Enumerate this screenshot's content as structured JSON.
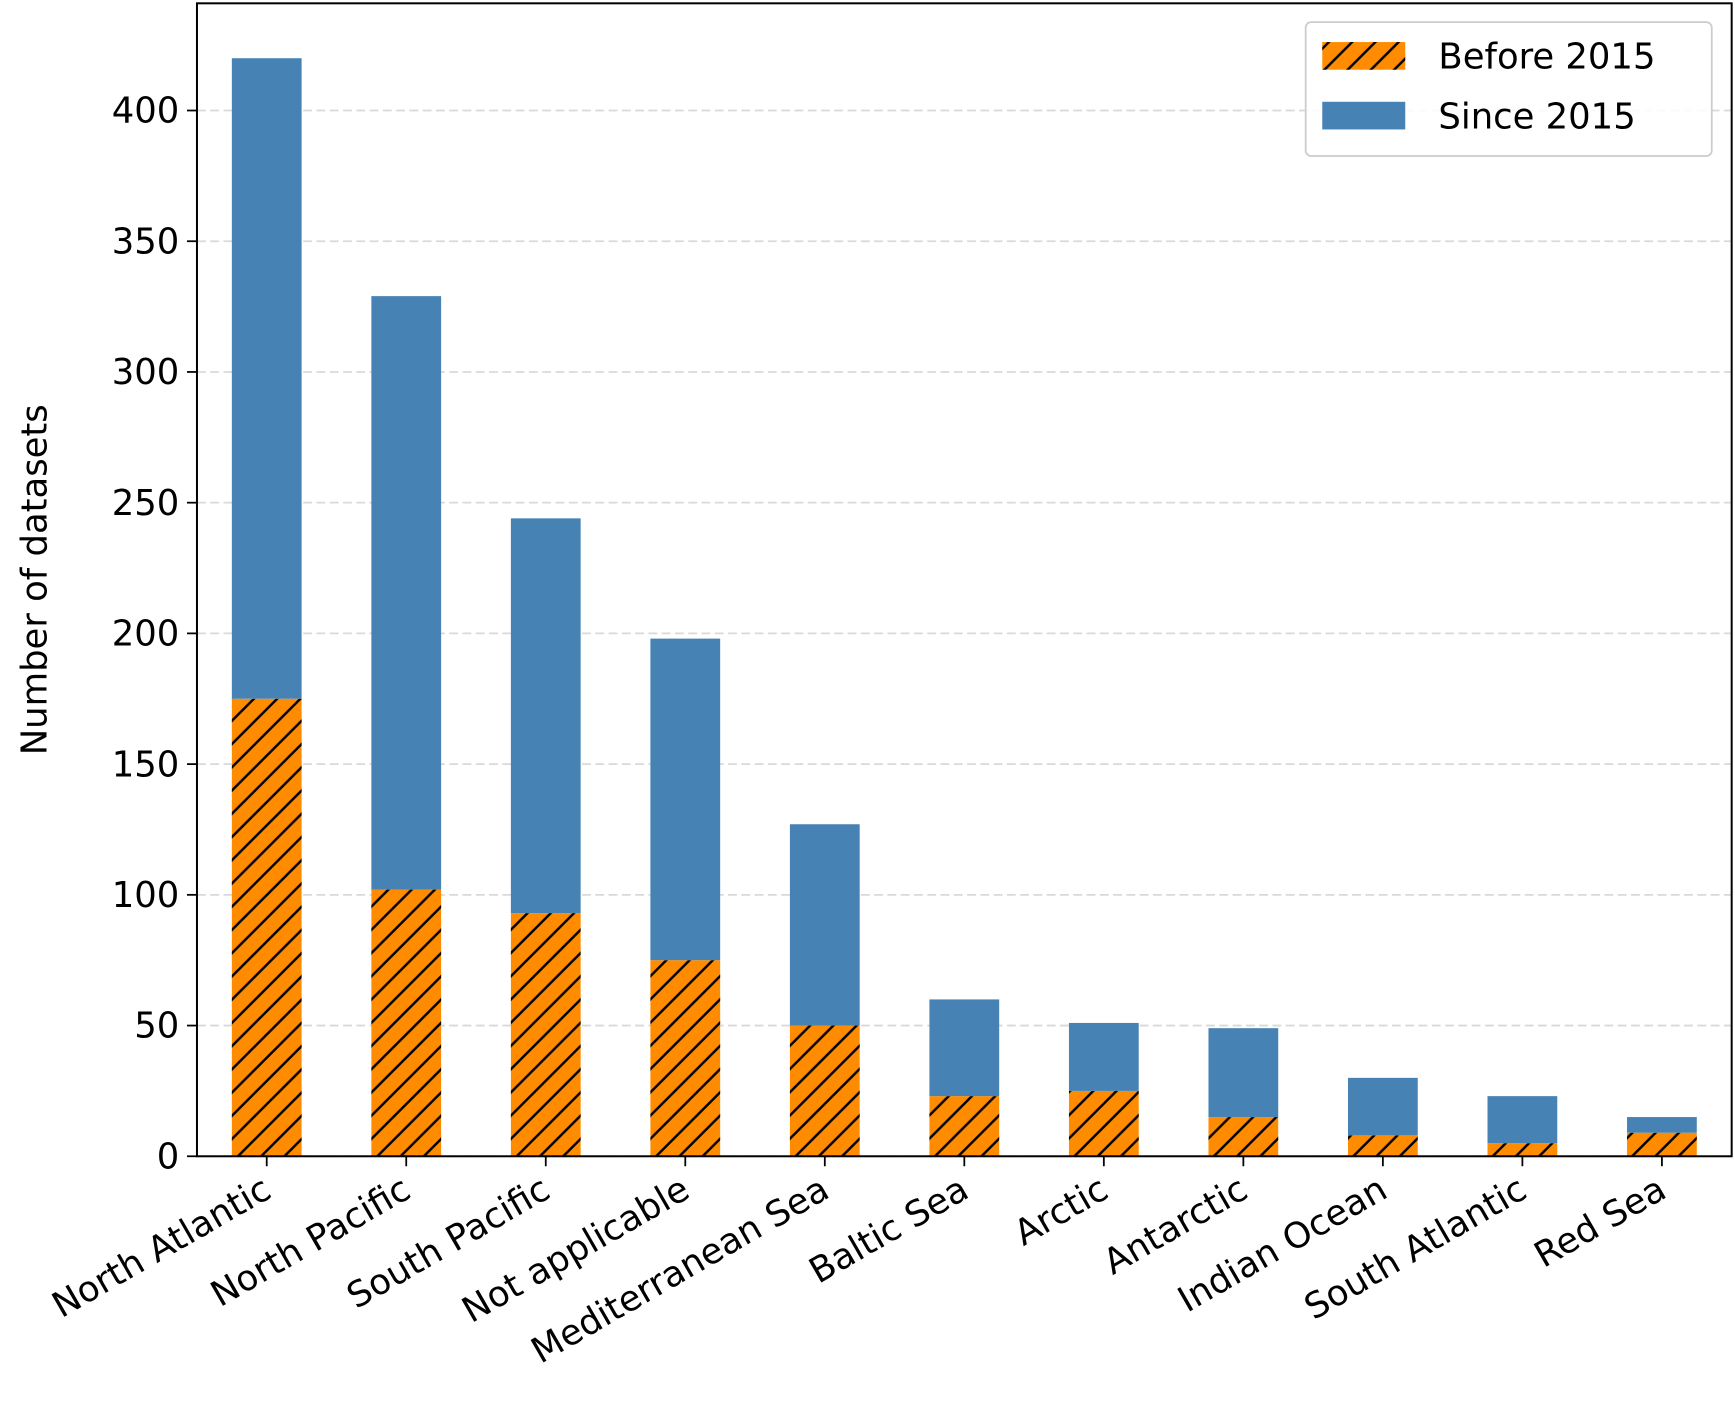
{
  "chart_data": {
    "type": "bar",
    "stacked": true,
    "y_label": "Number of datasets",
    "categories": [
      "North Atlantic",
      "North Pacific",
      "South Pacific",
      "Not applicable",
      "Mediterranean Sea",
      "Baltic Sea",
      "Arctic",
      "Antarctic",
      "Indian Ocean",
      "South Atlantic",
      "Red Sea"
    ],
    "series": [
      {
        "name": "Before 2015",
        "color": "#ff8c00",
        "hatch": "/",
        "values": [
          175,
          102,
          93,
          75,
          50,
          23,
          25,
          15,
          8,
          5,
          9
        ]
      },
      {
        "name": "Since 2015",
        "color": "#4682b4",
        "values": [
          245,
          227,
          151,
          123,
          77,
          37,
          26,
          34,
          22,
          18,
          6
        ]
      }
    ],
    "ylim": [
      0,
      441
    ],
    "yticks": [
      0,
      50,
      100,
      150,
      200,
      250,
      300,
      350,
      400
    ],
    "grid": true,
    "legend": "upper right"
  }
}
